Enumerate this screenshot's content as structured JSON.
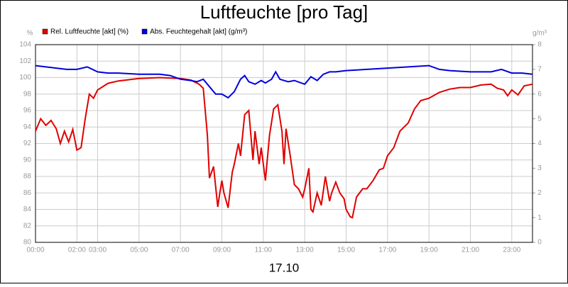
{
  "chart_data": {
    "type": "line",
    "title": "Luftfeuchte [pro Tag]",
    "ylabel": "%",
    "y2label": "g/m³",
    "xlabel": "17.10",
    "xlim": [
      0,
      24
    ],
    "xticks": [
      {
        "value": 0,
        "label": "00:00"
      },
      {
        "value": 2,
        "label": "02:00"
      },
      {
        "value": 3,
        "label": "03:00"
      },
      {
        "value": 5,
        "label": "05:00"
      },
      {
        "value": 7,
        "label": "07:00"
      },
      {
        "value": 9,
        "label": "09:00"
      },
      {
        "value": 11,
        "label": "11:00"
      },
      {
        "value": 13,
        "label": "13:00"
      },
      {
        "value": 15,
        "label": "15:00"
      },
      {
        "value": 17,
        "label": "17:00"
      },
      {
        "value": 19,
        "label": "19:00"
      },
      {
        "value": 21,
        "label": "21:00"
      },
      {
        "value": 23,
        "label": "23:00"
      }
    ],
    "ylim": [
      80,
      104
    ],
    "yticks": [
      80,
      82,
      84,
      86,
      88,
      90,
      92,
      94,
      96,
      98,
      100,
      102,
      104
    ],
    "y2lim": [
      0,
      8
    ],
    "y2ticks": [
      0,
      1,
      2,
      3,
      4,
      5,
      6,
      7,
      8
    ],
    "grid": true,
    "series": [
      {
        "name": "Rel. Luftfeuchte [akt] (%)",
        "color": "#e00000",
        "x": [
          0,
          0.25,
          0.5,
          0.75,
          1.0,
          1.2,
          1.4,
          1.6,
          1.8,
          2.0,
          2.2,
          2.4,
          2.6,
          2.8,
          3.0,
          3.5,
          4,
          5,
          6,
          7,
          7.5,
          7.9,
          8.1,
          8.3,
          8.4,
          8.6,
          8.8,
          8.9,
          9.0,
          9.1,
          9.3,
          9.5,
          9.6,
          9.8,
          9.9,
          10.1,
          10.3,
          10.5,
          10.6,
          10.8,
          10.9,
          11.1,
          11.3,
          11.5,
          11.7,
          11.9,
          12.0,
          12.1,
          12.3,
          12.5,
          12.7,
          12.9,
          13.0,
          13.2,
          13.3,
          13.4,
          13.6,
          13.8,
          14.0,
          14.2,
          14.3,
          14.5,
          14.7,
          14.9,
          15.0,
          15.2,
          15.3,
          15.5,
          15.8,
          16.0,
          16.3,
          16.6,
          16.8,
          17.0,
          17.3,
          17.6,
          18.0,
          18.3,
          18.6,
          19.0,
          19.5,
          20.0,
          20.5,
          21.0,
          21.5,
          22.0,
          22.3,
          22.6,
          22.8,
          23.0,
          23.3,
          23.6,
          24
        ],
        "values": [
          93.5,
          95,
          94.2,
          94.8,
          93.8,
          92,
          93.5,
          92.2,
          93.7,
          91.2,
          91.5,
          95,
          98,
          97.5,
          98.5,
          99.3,
          99.6,
          99.9,
          100,
          99.9,
          99.7,
          99.2,
          98.7,
          93,
          87.8,
          89.2,
          84.3,
          86,
          87.5,
          86,
          84.2,
          88.5,
          89.5,
          92,
          90.5,
          95.5,
          96,
          90,
          93.5,
          89.5,
          91.5,
          87.5,
          93,
          96.2,
          96.7,
          93.5,
          89.5,
          93.8,
          90.5,
          87,
          86.5,
          85.5,
          86.5,
          89,
          84,
          83.7,
          86,
          84.5,
          88,
          85,
          86,
          87.3,
          86,
          85.3,
          84,
          83.1,
          83,
          85.5,
          86.5,
          86.5,
          87.5,
          88.8,
          89,
          90.5,
          91.5,
          93.5,
          94.5,
          96.2,
          97.2,
          97.5,
          98.2,
          98.6,
          98.8,
          98.8,
          99.1,
          99.2,
          98.7,
          98.5,
          97.8,
          98.5,
          97.9,
          99,
          99.2
        ]
      },
      {
        "name": "Abs. Feuchtegehalt [akt] (g/m³)",
        "color": "#0000e0",
        "axis": "y2",
        "x": [
          0,
          0.5,
          1,
          1.5,
          2,
          2.5,
          3,
          3.5,
          4,
          5,
          6,
          6.5,
          7,
          7.5,
          7.8,
          8.1,
          8.4,
          8.7,
          9.0,
          9.3,
          9.6,
          9.9,
          10.1,
          10.3,
          10.6,
          10.9,
          11.1,
          11.4,
          11.6,
          11.8,
          12.2,
          12.5,
          13.0,
          13.3,
          13.6,
          13.9,
          14.2,
          14.5,
          15,
          16,
          17,
          18,
          19,
          19.5,
          20,
          21,
          22,
          22.5,
          23,
          23.5,
          24
        ],
        "values": [
          7.15,
          7.1,
          7.05,
          7.0,
          7.0,
          7.1,
          6.9,
          6.85,
          6.85,
          6.8,
          6.8,
          6.75,
          6.6,
          6.55,
          6.5,
          6.6,
          6.3,
          6.0,
          6.0,
          5.85,
          6.1,
          6.6,
          6.75,
          6.5,
          6.4,
          6.55,
          6.45,
          6.6,
          6.9,
          6.6,
          6.5,
          6.55,
          6.4,
          6.7,
          6.55,
          6.8,
          6.9,
          6.9,
          6.95,
          7.0,
          7.05,
          7.1,
          7.15,
          7.0,
          6.95,
          6.9,
          6.9,
          7.0,
          6.85,
          6.85,
          6.8
        ]
      }
    ]
  }
}
